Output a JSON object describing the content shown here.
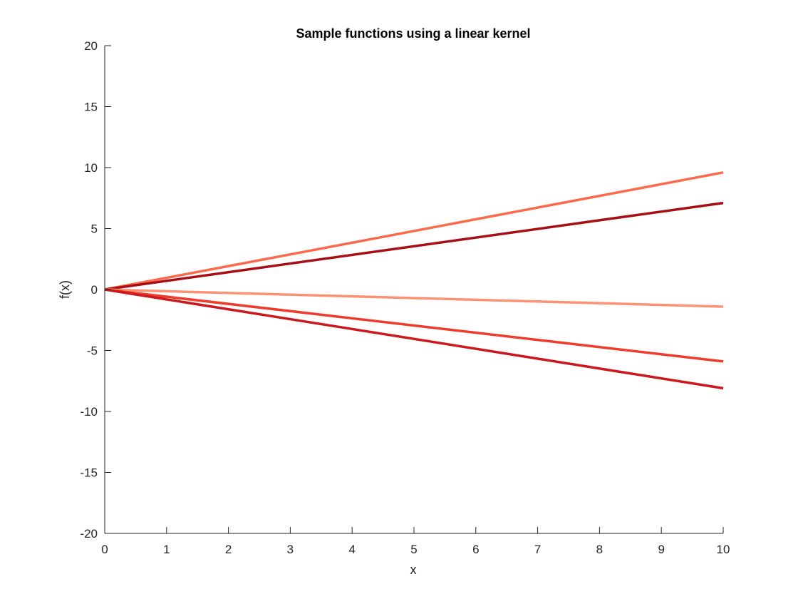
{
  "chart_data": {
    "type": "line",
    "title": "Sample functions using a linear kernel",
    "xlabel": "x",
    "ylabel": "f(x)",
    "xlim": [
      0,
      10
    ],
    "ylim": [
      -20,
      20
    ],
    "xticks": [
      0,
      1,
      2,
      3,
      4,
      5,
      6,
      7,
      8,
      9,
      10
    ],
    "yticks": [
      -20,
      -15,
      -10,
      -5,
      0,
      5,
      10,
      15,
      20
    ],
    "grid": false,
    "series": [
      {
        "color": "#fb6a4a",
        "x": [
          0,
          10
        ],
        "y": [
          0,
          9.6
        ]
      },
      {
        "color": "#a50f15",
        "x": [
          0,
          10
        ],
        "y": [
          0,
          7.1
        ]
      },
      {
        "color": "#fc9272",
        "x": [
          0,
          10
        ],
        "y": [
          0,
          -1.4
        ]
      },
      {
        "color": "#ef3b2c",
        "x": [
          0,
          10
        ],
        "y": [
          0,
          -5.9
        ]
      },
      {
        "color": "#cb181d",
        "x": [
          0,
          10
        ],
        "y": [
          0,
          -8.1
        ]
      }
    ]
  }
}
